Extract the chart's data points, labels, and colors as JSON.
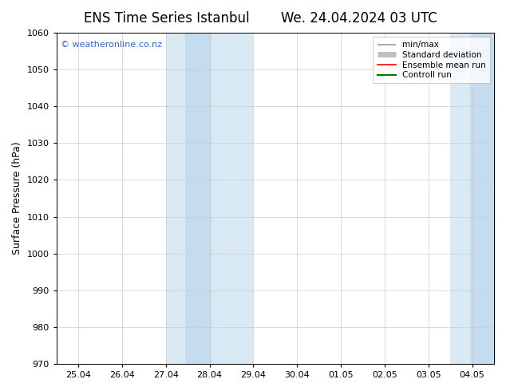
{
  "title_left": "ENS Time Series Istanbul",
  "title_right": "We. 24.04.2024 03 UTC",
  "ylabel": "Surface Pressure (hPa)",
  "ylim": [
    970,
    1060
  ],
  "yticks": [
    970,
    980,
    990,
    1000,
    1010,
    1020,
    1030,
    1040,
    1050,
    1060
  ],
  "x_tick_labels": [
    "25.04",
    "26.04",
    "27.04",
    "28.04",
    "29.04",
    "30.04",
    "01.05",
    "02.05",
    "03.05",
    "04.05"
  ],
  "x_tick_positions": [
    0,
    1,
    2,
    3,
    4,
    5,
    6,
    7,
    8,
    9
  ],
  "xlim": [
    -0.5,
    9.5
  ],
  "shaded_bands": [
    {
      "xmin": 2.0,
      "xmax": 4.0,
      "color": "#daeaf5",
      "zorder": 0
    },
    {
      "xmin": 2.45,
      "xmax": 3.05,
      "color": "#c5dcee",
      "zorder": 1
    },
    {
      "xmin": 8.5,
      "xmax": 9.5,
      "color": "#daeaf5",
      "zorder": 0
    },
    {
      "xmin": 8.95,
      "xmax": 9.5,
      "color": "#c5dcee",
      "zorder": 1
    }
  ],
  "copyright_text": "© weatheronline.co.nz",
  "copyright_color": "#3366cc",
  "background_color": "#ffffff",
  "plot_bg_color": "#ffffff",
  "grid_color": "#cccccc",
  "title_fontsize": 12,
  "label_fontsize": 8,
  "ylabel_fontsize": 9,
  "legend_entries": [
    {
      "label": "min/max",
      "color": "#999999",
      "lw": 1.2
    },
    {
      "label": "Standard deviation",
      "color": "#c0c0c0",
      "lw": 5
    },
    {
      "label": "Ensemble mean run",
      "color": "#ff0000",
      "lw": 1.2
    },
    {
      "label": "Controll run",
      "color": "#007700",
      "lw": 1.5
    }
  ]
}
